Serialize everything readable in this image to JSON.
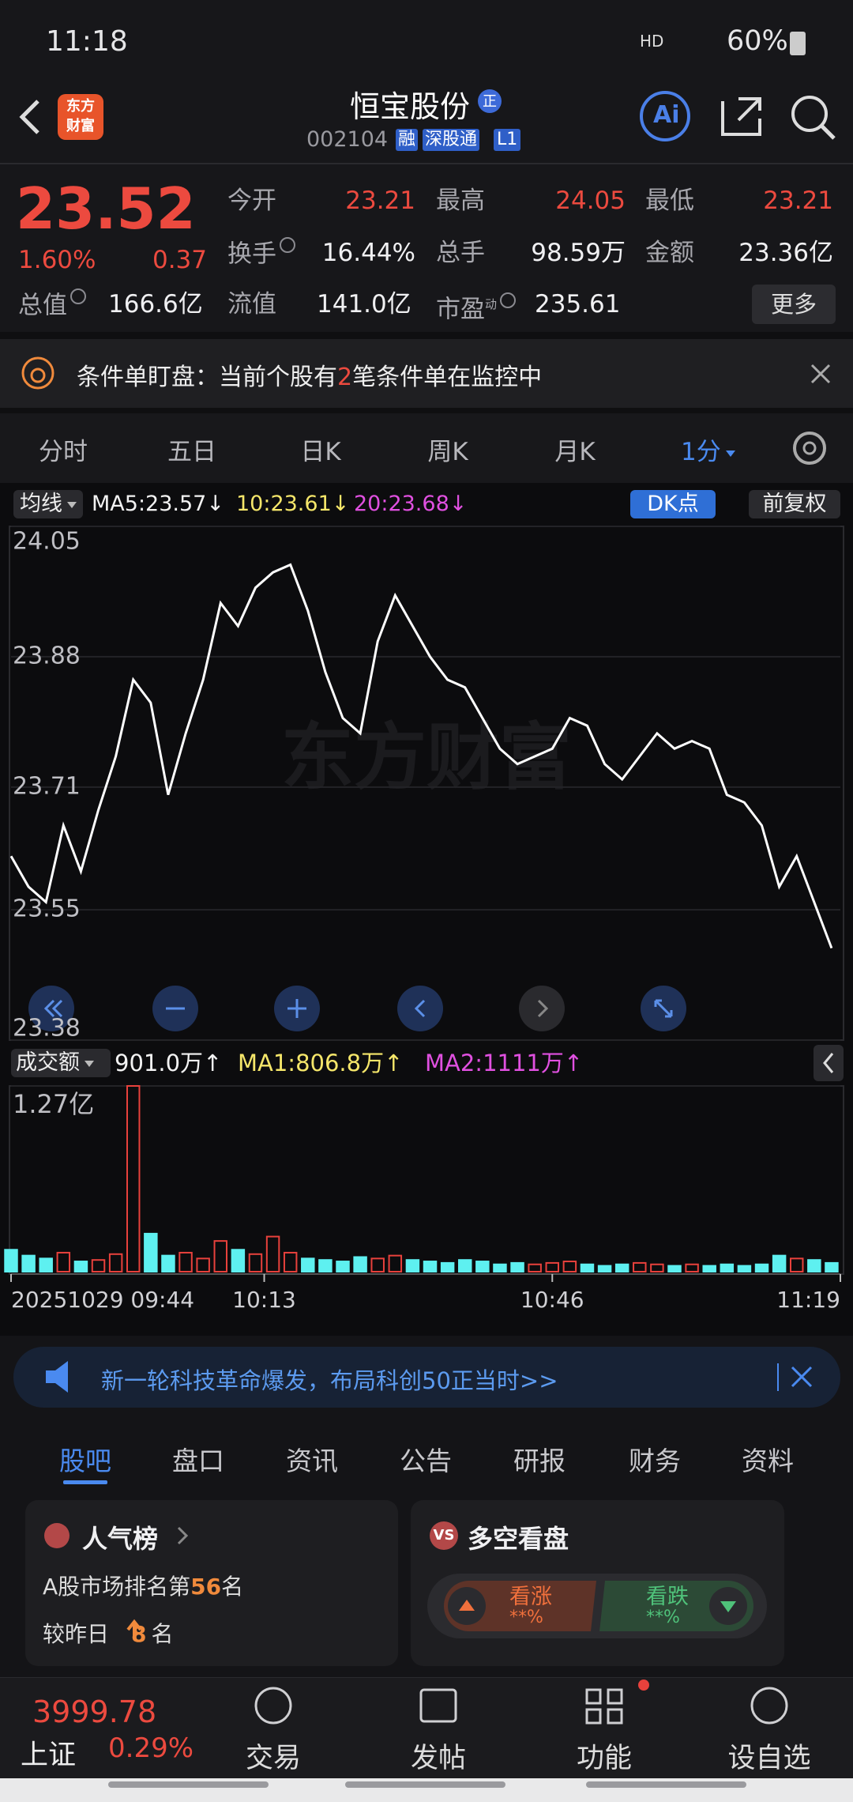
{
  "status_bar": {
    "time": "11:18",
    "network": "HD",
    "battery": "60%"
  },
  "header": {
    "logo": [
      "东方",
      "财富"
    ],
    "title": "恒宝股份",
    "badge": "正",
    "code": "002104",
    "tags": [
      "融",
      "深股通",
      "L1"
    ],
    "ai": "Ai"
  },
  "quote": {
    "price": "23.52",
    "change_pct": "1.60%",
    "change": "0.37",
    "rows": [
      [
        {
          "label": "今开",
          "value": "23.21"
        },
        {
          "label": "最高",
          "value": "24.05"
        },
        {
          "label": "最低",
          "value": "23.21"
        }
      ],
      [
        {
          "label": "换手",
          "value": "16.44%"
        },
        {
          "label": "总手",
          "value": "98.59万"
        },
        {
          "label": "金额",
          "value": "23.36亿"
        }
      ],
      [
        {
          "label": "总值",
          "value": "166.6亿"
        },
        {
          "label": "流值",
          "value": "141.0亿"
        },
        {
          "label": "市盈",
          "value": "235.61"
        }
      ]
    ],
    "pe_mark": "动",
    "more": "更多"
  },
  "alert": {
    "parts": [
      "条件单盯盘：当前个股有",
      "2",
      "笔条件单在监控中"
    ]
  },
  "period_tabs": [
    "分时",
    "五日",
    "日K",
    "周K",
    "月K",
    "1分"
  ],
  "chart_toolbar": {
    "ma_button": "均线",
    "indicators": [
      "MA5:23.57↓",
      "10:23.61↓",
      "20:23.68↓"
    ],
    "dk": "DK点",
    "adjust": "前复权"
  },
  "watermark": "东方财富",
  "volume_toolbar": {
    "button": "成交额",
    "indicators": [
      "901.0万↑",
      "MA1:806.8万↑",
      "MA2:1111万↑"
    ]
  },
  "chart_data": [
    {
      "type": "line",
      "color": "#ffffff",
      "x": [
        "09:44",
        "09:46",
        "09:48",
        "09:50",
        "09:52",
        "09:54",
        "09:56",
        "09:58",
        "10:00",
        "10:02",
        "10:04",
        "10:06",
        "10:08",
        "10:10",
        "10:12",
        "10:14",
        "10:16",
        "10:18",
        "10:20",
        "10:22",
        "10:24",
        "10:26",
        "10:28",
        "10:30",
        "10:32",
        "10:34",
        "10:36",
        "10:38",
        "10:40",
        "10:42",
        "10:44",
        "10:46",
        "10:48",
        "10:50",
        "10:52",
        "10:54",
        "10:56",
        "10:58",
        "11:00",
        "11:02",
        "11:04",
        "11:06",
        "11:08",
        "11:10",
        "11:12",
        "11:14",
        "11:16",
        "11:18"
      ],
      "values": [
        23.62,
        23.58,
        23.56,
        23.66,
        23.6,
        23.68,
        23.75,
        23.85,
        23.82,
        23.7,
        23.78,
        23.85,
        23.95,
        23.92,
        23.97,
        23.99,
        24.0,
        23.94,
        23.86,
        23.8,
        23.78,
        23.9,
        23.96,
        23.92,
        23.88,
        23.85,
        23.84,
        23.8,
        23.76,
        23.74,
        23.75,
        23.76,
        23.8,
        23.79,
        23.74,
        23.72,
        23.75,
        23.78,
        23.76,
        23.77,
        23.76,
        23.7,
        23.69,
        23.66,
        23.58,
        23.62,
        23.56,
        23.5
      ],
      "xlim": [
        "09:44",
        "11:19"
      ],
      "ylim": [
        23.38,
        24.05
      ],
      "yticks": [
        24.05,
        23.88,
        23.71,
        23.55,
        23.38
      ],
      "grid": true
    },
    {
      "type": "bar",
      "up_color": "#e8413c",
      "down_color": "#5ef0f0",
      "x": [
        "09:44",
        "09:46",
        "09:48",
        "09:50",
        "09:52",
        "09:54",
        "09:56",
        "09:58",
        "10:00",
        "10:02",
        "10:04",
        "10:06",
        "10:08",
        "10:10",
        "10:12",
        "10:14",
        "10:16",
        "10:18",
        "10:20",
        "10:22",
        "10:24",
        "10:26",
        "10:28",
        "10:30",
        "10:32",
        "10:34",
        "10:36",
        "10:38",
        "10:40",
        "10:42",
        "10:44",
        "10:46",
        "10:48",
        "10:50",
        "10:52",
        "10:54",
        "10:56",
        "10:58",
        "11:00",
        "11:02",
        "11:04",
        "11:06",
        "11:08",
        "11:10",
        "11:12",
        "11:14",
        "11:16",
        "11:18"
      ],
      "values": [
        1500,
        1100,
        900,
        1300,
        700,
        800,
        1200,
        12700,
        2600,
        1100,
        1300,
        900,
        2100,
        1500,
        1200,
        2400,
        1300,
        900,
        800,
        700,
        1000,
        900,
        1100,
        800,
        700,
        600,
        800,
        700,
        500,
        600,
        500,
        600,
        700,
        500,
        400,
        500,
        600,
        500,
        400,
        500,
        400,
        500,
        400,
        500,
        1100,
        900,
        800,
        600
      ],
      "xlim": [
        "09:44",
        "11:19"
      ],
      "ylim": [
        0,
        12700
      ],
      "yticks": [
        {
          "value": 12700,
          "label": "1.27亿"
        }
      ],
      "xticks": [
        {
          "value": "09:44",
          "label": "20251029 09:44"
        },
        "10:13",
        "10:46",
        "11:19"
      ]
    }
  ],
  "ad": "新一轮科技革命爆发，布局科创50正当时>>",
  "content_tabs": [
    "股吧",
    "盘口",
    "资讯",
    "公告",
    "研报",
    "财务",
    "资料"
  ],
  "cards": {
    "popularity": {
      "title": "人气榜",
      "rank_parts": [
        "A股市场排名第",
        "56",
        "名"
      ],
      "change_parts": [
        "较昨日",
        "8",
        "名"
      ]
    },
    "sentiment": {
      "icon": "VS",
      "title": "多空看盘",
      "bull": "看涨",
      "bull_pct": "**%",
      "bear": "看跌",
      "bear_pct": "**%"
    }
  },
  "bottom_nav": {
    "index_value": "3999.78",
    "index_name": "上证",
    "index_change": "0.29%",
    "items": [
      "交易",
      "发帖",
      "功能",
      "设自选"
    ]
  }
}
